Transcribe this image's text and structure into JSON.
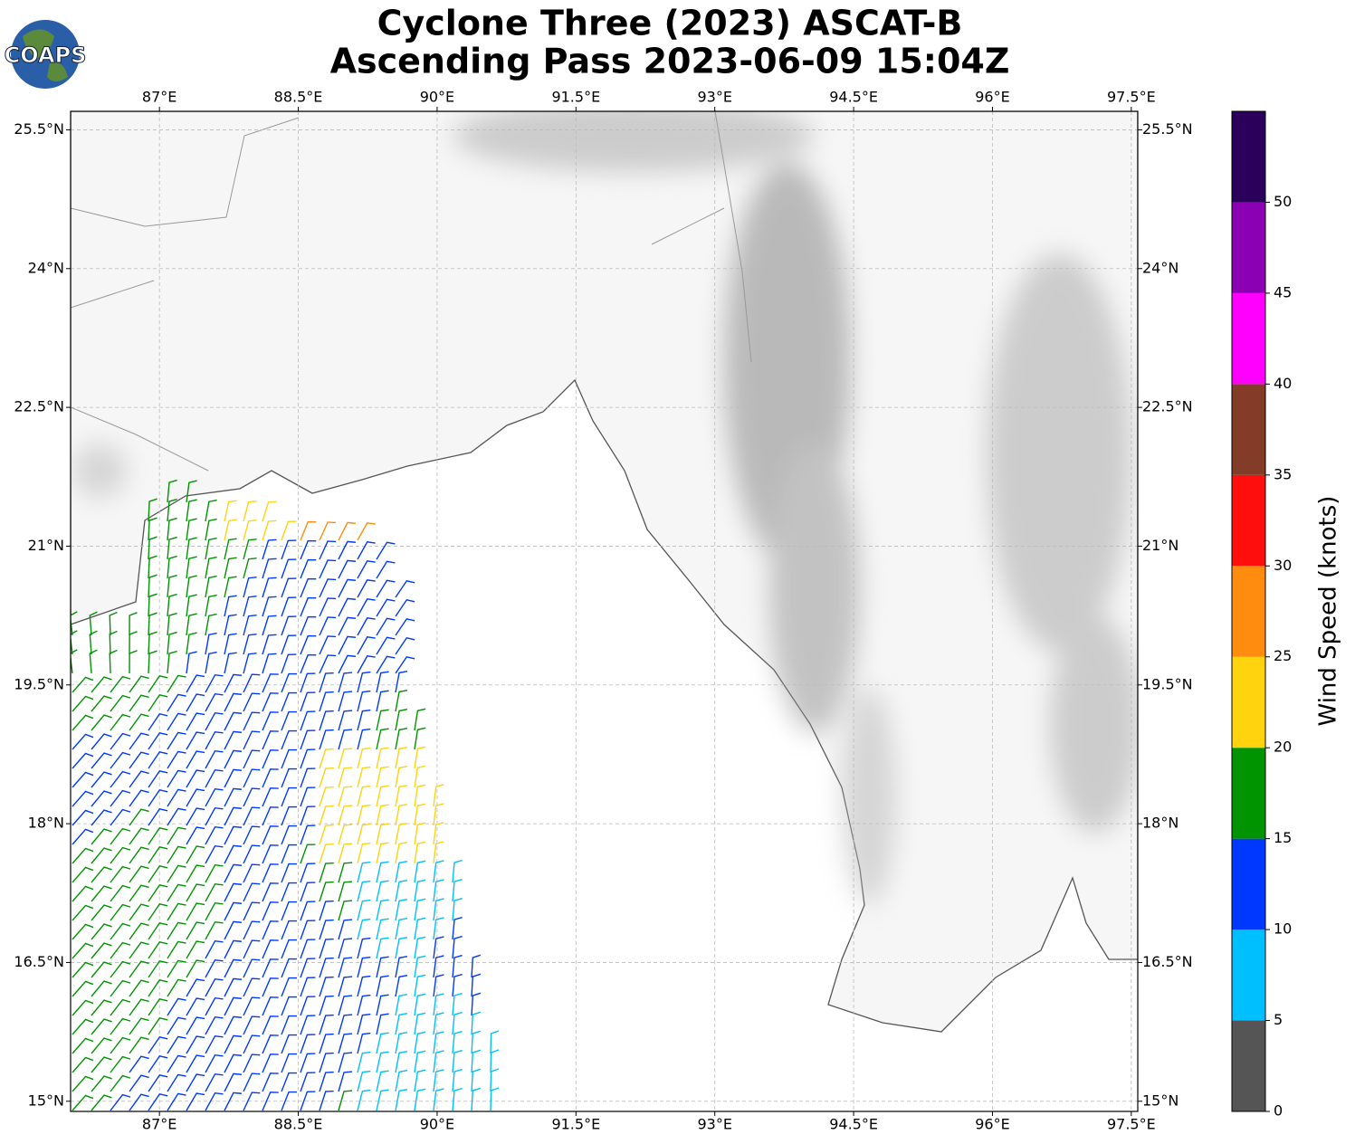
{
  "chart_data": {
    "type": "wind-map",
    "title": "Cyclone Three (2023) ASCAT-B",
    "subtitle": "Ascending Pass 2023-06-09 15:04Z",
    "logo": "COAPS",
    "xlim": [
      86.04,
      97.57
    ],
    "ylim": [
      14.89,
      25.7
    ],
    "xticks": [
      {
        "value": 87,
        "label": "87°E"
      },
      {
        "value": 88.5,
        "label": "88.5°E"
      },
      {
        "value": 90,
        "label": "90°E"
      },
      {
        "value": 91.5,
        "label": "91.5°E"
      },
      {
        "value": 93,
        "label": "93°E"
      },
      {
        "value": 94.5,
        "label": "94.5°E"
      },
      {
        "value": 96,
        "label": "96°E"
      },
      {
        "value": 97.5,
        "label": "97.5°E"
      }
    ],
    "yticks": [
      {
        "value": 15,
        "label": "15°N"
      },
      {
        "value": 16.5,
        "label": "16.5°N"
      },
      {
        "value": 18,
        "label": "18°N"
      },
      {
        "value": 19.5,
        "label": "19.5°N"
      },
      {
        "value": 21,
        "label": "21°N"
      },
      {
        "value": 22.5,
        "label": "22.5°N"
      },
      {
        "value": 24,
        "label": "24°N"
      },
      {
        "value": 25.5,
        "label": "25.5°N"
      }
    ],
    "grid": true,
    "colorbar": {
      "label": "Wind Speed (knots)",
      "lim": [
        0,
        55
      ],
      "ticks": [
        0,
        5,
        10,
        15,
        20,
        25,
        30,
        35,
        40,
        45,
        50
      ],
      "bounds": [
        0,
        5,
        10,
        15,
        20,
        25,
        30,
        35,
        40,
        45,
        50,
        55
      ],
      "colors": [
        "#555555",
        "#00bfff",
        "#0038ff",
        "#009400",
        "#ffd30e",
        "#ff8c0e",
        "#ff0e0e",
        "#823c28",
        "#ff00ff",
        "#8c00b4",
        "#2a005a"
      ]
    }
  }
}
